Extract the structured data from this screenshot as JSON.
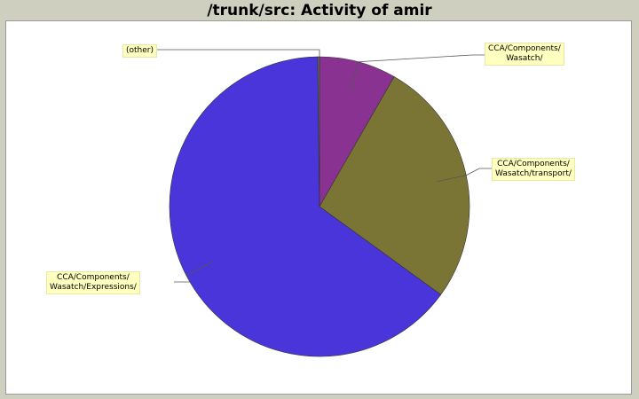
{
  "chart_data": {
    "type": "pie",
    "title": "/trunk/src: Activity of amir",
    "slices": [
      {
        "label": "CCA/Components/\nWasatch/",
        "value": 8.3,
        "color": "#8a3292"
      },
      {
        "label": "CCA/Components/\nWasatch/transport/",
        "value": 26.7,
        "color": "#7b7535"
      },
      {
        "label": "CCA/Components/\nWasatch/Expressions/",
        "value": 64.8,
        "color": "#4a35db"
      },
      {
        "label": "(other)",
        "value": 0.2,
        "color": "#666666"
      }
    ]
  }
}
